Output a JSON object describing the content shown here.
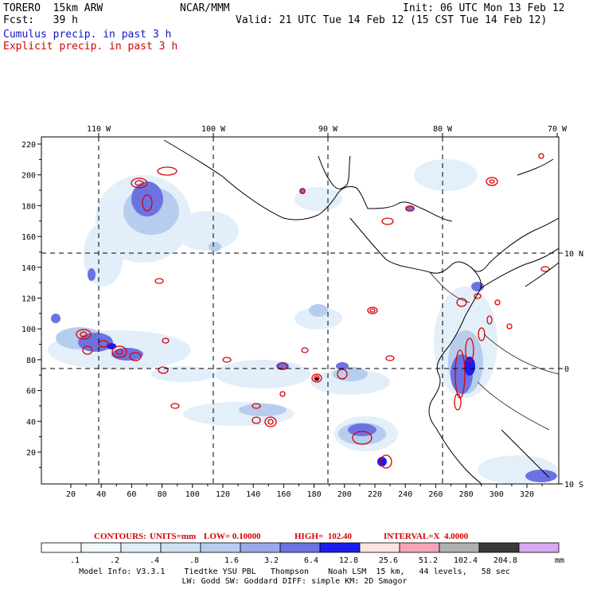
{
  "header": {
    "model": "TORERO  15km ARW",
    "org": "NCAR/MMM",
    "init": "Init: 06 UTC Mon 13 Feb 12",
    "fcst": "Fcst:   39 h",
    "valid": "Valid: 21 UTC Tue 14 Feb 12 (15 CST Tue 14 Feb 12)"
  },
  "legend_lines": {
    "cumulus": "Cumulus precip. in past 3 h",
    "explicit": "Explicit precip. in past 3 h"
  },
  "axes": {
    "top_lon_labels": [
      "110 W",
      "100 W",
      "90 W",
      "80 W",
      "70 W"
    ],
    "right_lat_labels": [
      "10 N",
      "0",
      "10 S"
    ],
    "y_ticks": [
      "220",
      "200",
      "180",
      "160",
      "140",
      "120",
      "100",
      "80",
      "60",
      "40",
      "20"
    ],
    "x_ticks": [
      "20",
      "40",
      "60",
      "80",
      "100",
      "120",
      "140",
      "160",
      "180",
      "200",
      "220",
      "240",
      "260",
      "280",
      "300",
      "320"
    ]
  },
  "contour_info": {
    "label": "CONTOURS:",
    "units": "UNITS=mm",
    "low": "LOW= 0.10000",
    "high": "HIGH=  102.40",
    "interval": "INTERVAL=X  4.0000"
  },
  "colorbar": {
    "unit": "mm",
    "labels": [
      ".1",
      ".2",
      ".4",
      ".8",
      "1.6",
      "3.2",
      "6.4",
      "12.8",
      "25.6",
      "51.2",
      "102.4",
      "204.8"
    ],
    "colors": [
      "#ffffff",
      "#f2f7fc",
      "#e1eef9",
      "#cfe2f4",
      "#b7cdee",
      "#9aa9ea",
      "#6b73e3",
      "#1c1cef",
      "#fbe3e0",
      "#f7a3b9",
      "#b0b0b0",
      "#3a3a3a",
      "#d9a8f2"
    ]
  },
  "footer": {
    "line1": "Model Info: V3.3.1    Tiedtke YSU PBL   Thompson    Noah LSM  15 km,   44 levels,   58 sec",
    "line2": "LW: Godd SW: Goddard DIFF: simple KM: 2D Smagor"
  }
}
